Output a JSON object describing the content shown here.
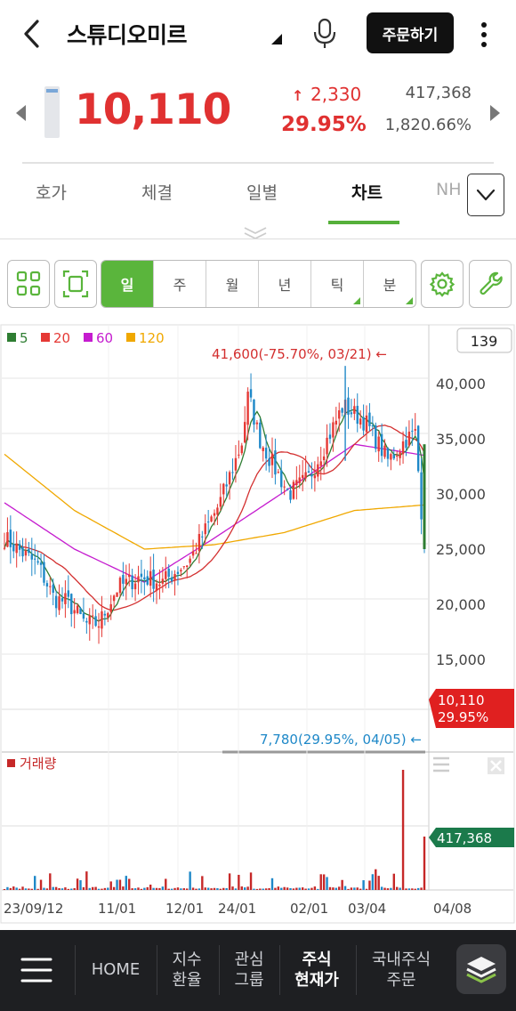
{
  "header": {
    "title": "스튜디오미르",
    "order_button": "주문하기"
  },
  "quote": {
    "price": "10,110",
    "change_arrow": "↑",
    "change": "2,330",
    "change_rate": "29.95%",
    "volume": "417,368",
    "volume_rate": "1,820.66%"
  },
  "tabs": [
    {
      "label": "호가",
      "active": false
    },
    {
      "label": "체결",
      "active": false
    },
    {
      "label": "일별",
      "active": false
    },
    {
      "label": "차트",
      "active": true
    },
    {
      "label": "NH",
      "active": false
    }
  ],
  "period_buttons": [
    {
      "label": "일",
      "active": true,
      "corner": false
    },
    {
      "label": "주",
      "active": false,
      "corner": false
    },
    {
      "label": "월",
      "active": false,
      "corner": false
    },
    {
      "label": "년",
      "active": false,
      "corner": false
    },
    {
      "label": "틱",
      "active": false,
      "corner": true
    },
    {
      "label": "분",
      "active": false,
      "corner": true
    }
  ],
  "chart": {
    "legend": [
      {
        "label": "5",
        "color": "#2e7d32"
      },
      {
        "label": "20",
        "color": "#e53935"
      },
      {
        "label": "60",
        "color": "#c51ccf"
      },
      {
        "label": "120",
        "color": "#f0a800"
      }
    ],
    "count_box": "139",
    "high_annotation": "41,600(-75.70%, 03/21)",
    "low_annotation": "7,780(29.95%, 04/05)",
    "current_price_label": "10,110",
    "current_rate_label": "29.95%",
    "y_ticks": [
      "40,000",
      "35,000",
      "30,000",
      "25,000",
      "20,000",
      "15,000"
    ],
    "volume_title": "거래량",
    "volume_label": "417,368",
    "x_labels": [
      "23/09/12",
      "11/01",
      "12/01",
      "24/01",
      "02/01",
      "03/04",
      "04/08"
    ],
    "colors": {
      "up": "#e53935",
      "down": "#1e88c8",
      "ma5": "#2e7d32",
      "ma20": "#d32f2f",
      "ma60": "#c51ccf",
      "ma120": "#f0a800"
    }
  },
  "chart_data": {
    "type": "line",
    "title": "",
    "xlabel": "",
    "ylabel": "",
    "x": [
      "23/09/12",
      "11/01",
      "12/01",
      "24/01",
      "02/01",
      "03/04",
      "04/08"
    ],
    "ylim": [
      10000,
      45000
    ],
    "series": [
      {
        "name": "5",
        "values": [
          26000,
          18300,
          22500,
          38000,
          32500,
          37500,
          25000
        ]
      },
      {
        "name": "20",
        "values": [
          26000,
          19000,
          22000,
          31000,
          34500,
          35000,
          31700
        ]
      },
      {
        "name": "60",
        "values": [
          29200,
          25000,
          22000,
          26000,
          30200,
          34500,
          33500
        ]
      },
      {
        "name": "120",
        "values": [
          33600,
          28500,
          25000,
          25400,
          26500,
          28500,
          29000
        ]
      }
    ],
    "volume_last": 417368
  },
  "bottom_nav": {
    "items": [
      {
        "label": "HOME"
      },
      {
        "label": "지수\n환율"
      },
      {
        "label": "관심\n그룹"
      },
      {
        "label": "주식\n현재가"
      },
      {
        "label": "국내주식\n주문"
      }
    ]
  }
}
